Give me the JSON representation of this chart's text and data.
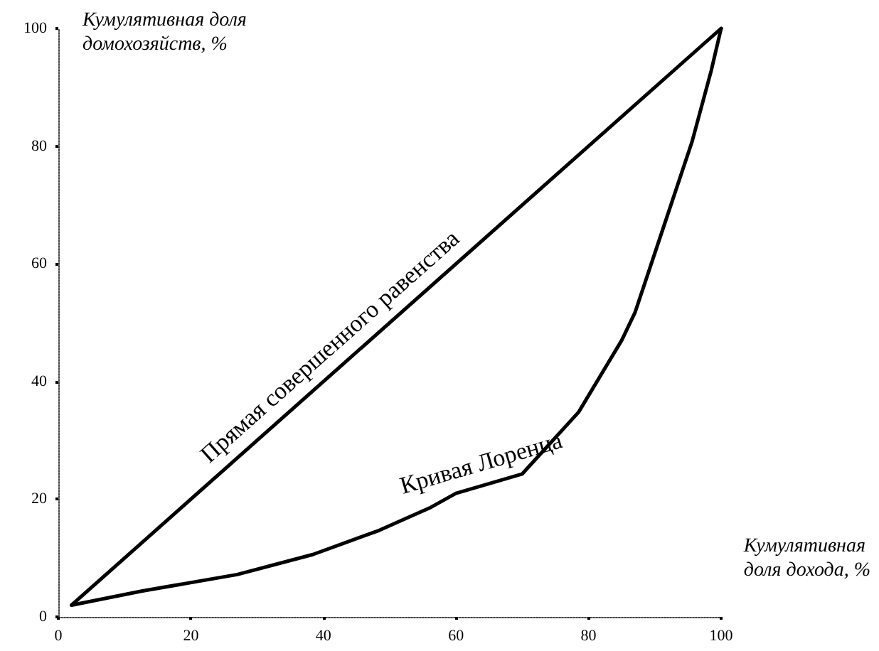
{
  "chart_data": {
    "type": "line",
    "xlabel": "Кумулятивная доля дохода, %",
    "ylabel": "Кумулятивная доля домохозяйств, %",
    "xlim": [
      0,
      100
    ],
    "xticks": [
      0,
      20,
      40,
      60,
      80,
      100
    ],
    "ylim": [
      0,
      100
    ],
    "yticks": [
      0,
      20,
      40,
      60,
      80,
      100
    ],
    "grid": false,
    "legend": false,
    "marker": "none",
    "line_style": "solid",
    "series": [
      {
        "name": "Прямая совершенного равенства",
        "color": "#000000",
        "x": [
          2,
          100
        ],
        "values": [
          2,
          100
        ]
      },
      {
        "name": "Кривая Лоренца",
        "color": "#000000",
        "x": [
          2,
          12.7,
          27,
          38.4,
          48.4,
          56,
          60,
          70,
          78.5,
          85,
          87,
          91.3,
          95.6,
          98.5,
          100
        ],
        "values": [
          2,
          4.4,
          7.2,
          10.6,
          14.7,
          18.5,
          21,
          24.3,
          34.8,
          47,
          51.7,
          66.2,
          80.7,
          92.8,
          100
        ]
      }
    ]
  }
}
